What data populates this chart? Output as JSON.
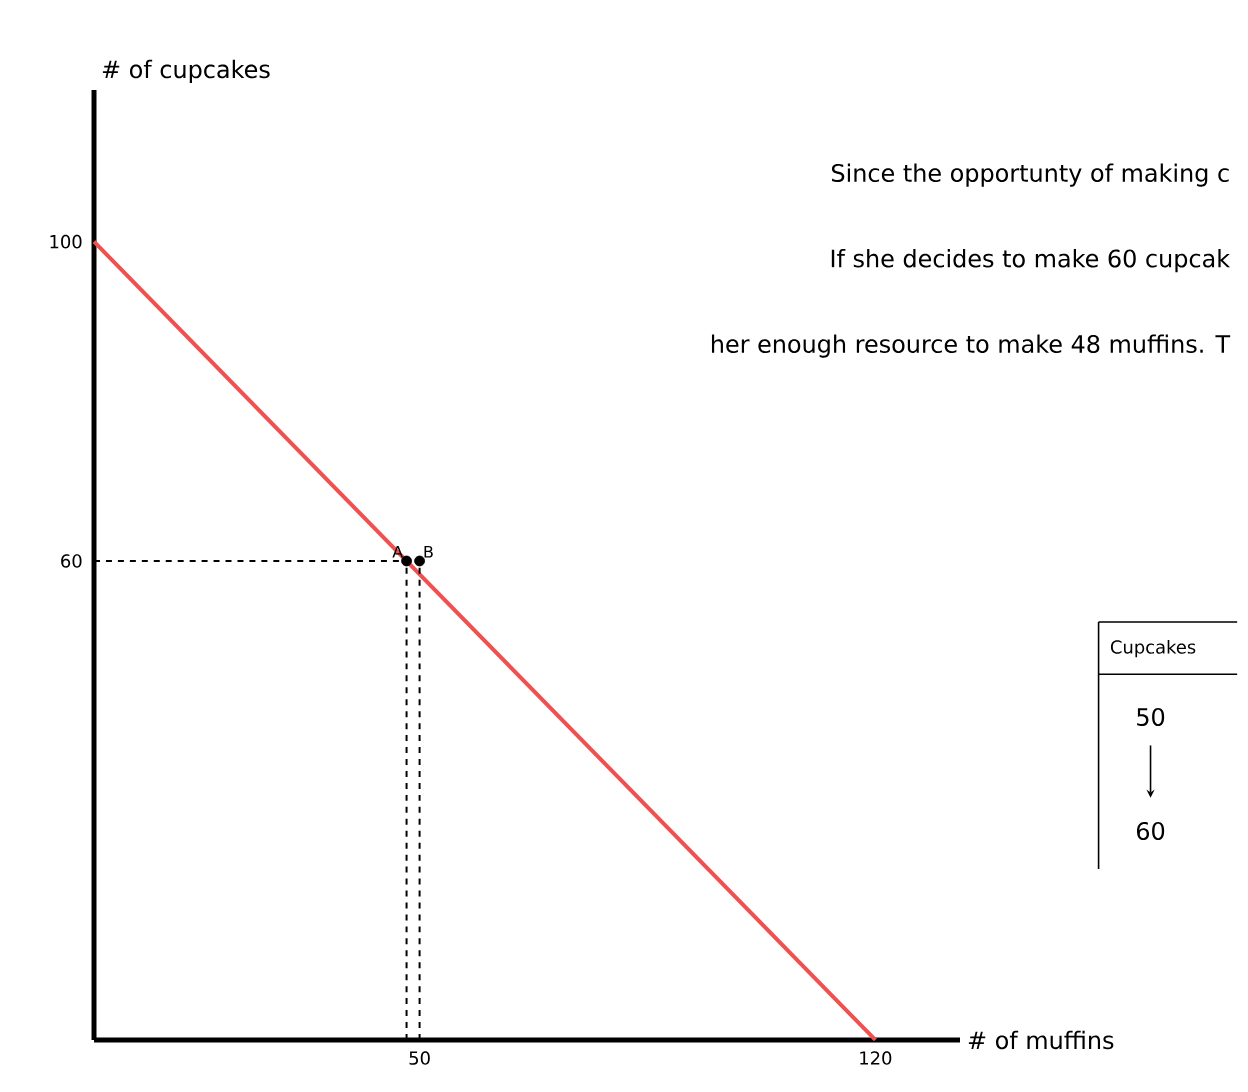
{
  "chart_data": {
    "type": "line",
    "xlabel": "# of muffins",
    "ylabel": "# of cupcakes",
    "xlim": [
      0,
      133
    ],
    "ylim": [
      0,
      119
    ],
    "xticks": [
      50,
      120
    ],
    "yticks": [
      60,
      100
    ],
    "series": [
      {
        "color": "#f0504f",
        "x": [
          0,
          120
        ],
        "values": [
          100,
          0
        ]
      },
      {
        "color": "#000000",
        "line_style": "dashed",
        "x": [
          0,
          50
        ],
        "values": [
          60,
          60
        ]
      },
      {
        "color": "#000000",
        "line_style": "dashed",
        "x": [
          48,
          48
        ],
        "values": [
          0,
          60
        ]
      },
      {
        "color": "#000000",
        "line_style": "dashed",
        "x": [
          50,
          50
        ],
        "values": [
          0,
          60
        ]
      },
      {
        "type": "scatter",
        "color": "#000000",
        "marker": "circle",
        "x": [
          48,
          50
        ],
        "values": [
          60,
          60
        ]
      }
    ],
    "annotations": [
      {
        "text": "A",
        "x": 48,
        "y": 60
      },
      {
        "text": "B",
        "x": 50,
        "y": 60
      },
      "Since the opportunty of making c",
      "If she decides to make 60 cupcak",
      "her enough resource to make 48 muffins. T",
      "Cupcakes",
      "50",
      "60"
    ]
  }
}
